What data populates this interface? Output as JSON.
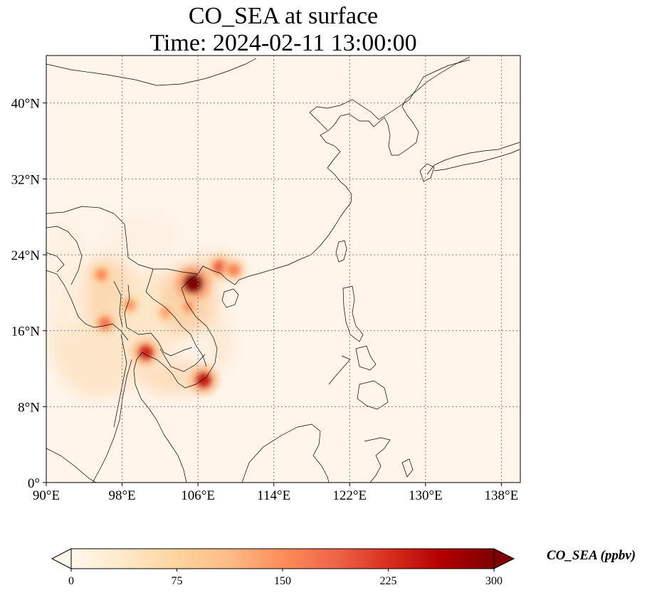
{
  "title": {
    "line1": "CO_SEA at surface",
    "line2": "Time: 2024-02-11 13:00:00"
  },
  "map": {
    "projection": "PlateCarree",
    "lon_range": [
      90,
      140
    ],
    "lat_range": [
      0,
      45
    ],
    "lon_ticks": [
      90,
      98,
      106,
      114,
      122,
      130,
      138
    ],
    "lat_ticks": [
      0,
      8,
      16,
      24,
      32,
      40
    ],
    "lon_tick_labels": [
      "90°E",
      "98°E",
      "106°E",
      "114°E",
      "122°E",
      "130°E",
      "138°E"
    ],
    "lat_tick_labels": [
      "0°",
      "8°N",
      "16°N",
      "24°N",
      "32°N",
      "40°N"
    ],
    "gridlines": "dotted",
    "background_color": "#fff5eb",
    "coastline_color": "#000000"
  },
  "field": {
    "variable": "CO_SEA",
    "level": "surface",
    "units": "ppbv",
    "hotspots": [
      {
        "lon": 105.5,
        "lat": 21.0,
        "value": 300
      },
      {
        "lon": 106.6,
        "lat": 10.8,
        "value": 240
      },
      {
        "lon": 100.5,
        "lat": 13.7,
        "value": 230
      },
      {
        "lon": 108.3,
        "lat": 22.7,
        "value": 190
      },
      {
        "lon": 109.8,
        "lat": 22.4,
        "value": 160
      },
      {
        "lon": 95.8,
        "lat": 21.9,
        "value": 150
      },
      {
        "lon": 96.2,
        "lat": 16.8,
        "value": 170
      },
      {
        "lon": 98.8,
        "lat": 18.7,
        "value": 140
      },
      {
        "lon": 102.6,
        "lat": 17.9,
        "value": 130
      },
      {
        "lon": 105.0,
        "lat": 18.5,
        "value": 140
      }
    ]
  },
  "colorbar": {
    "cmap": "OrRd",
    "colors": [
      "#fff7ec",
      "#fee8c8",
      "#fdd49e",
      "#fdbb84",
      "#fc8d59",
      "#ef6548",
      "#d7301f",
      "#b30000",
      "#7f0000"
    ],
    "ticks": [
      0,
      75,
      150,
      225,
      300
    ],
    "tick_labels": [
      "0",
      "75",
      "150",
      "225",
      "300"
    ],
    "vmin": 0,
    "vmax": 300,
    "extend": "both",
    "label": "CO_SEA (ppbv)"
  }
}
